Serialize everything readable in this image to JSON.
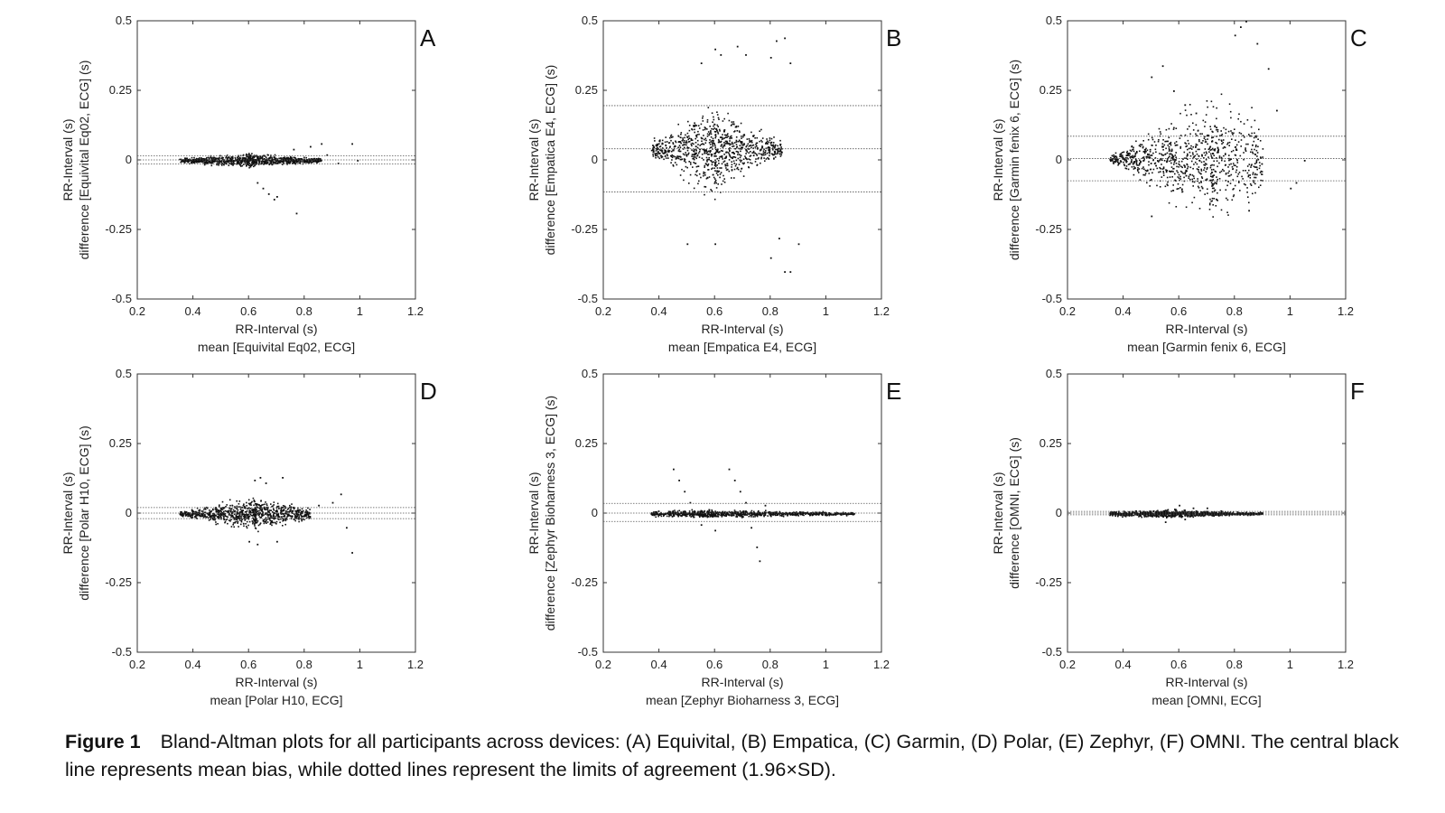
{
  "chart_data": [
    {
      "type": "scatter",
      "panel_letter": "A",
      "xlabel": [
        "RR-Interval (s)",
        "mean [Equivital Eq02, ECG]"
      ],
      "ylabel": [
        "RR-Interval (s)",
        "difference [Equivital Eq02, ECG] (s)"
      ],
      "xlim": [
        0.2,
        1.2
      ],
      "ylim": [
        -0.5,
        0.5
      ],
      "xticks": [
        "0.2",
        "0.4",
        "0.6",
        "0.8",
        "1",
        "1.2"
      ],
      "yticks": [
        "0.5",
        "0.25",
        "0",
        "-0.25",
        "-0.5"
      ],
      "bias": 0.0,
      "loa": [
        -0.015,
        0.015
      ],
      "cloud": {
        "x_range": [
          0.35,
          0.86
        ],
        "x_peak": 0.6,
        "spread": [
          0.006,
          0.022
        ]
      },
      "points": [
        [
          0.63,
          -0.08
        ],
        [
          0.65,
          -0.1
        ],
        [
          0.67,
          -0.12
        ],
        [
          0.69,
          -0.14
        ],
        [
          0.7,
          -0.13
        ],
        [
          0.77,
          -0.19
        ],
        [
          0.76,
          0.04
        ],
        [
          0.82,
          0.05
        ],
        [
          0.86,
          0.06
        ],
        [
          0.97,
          0.06
        ],
        [
          0.99,
          0.0
        ],
        [
          0.88,
          0.02
        ],
        [
          0.92,
          -0.01
        ]
      ]
    },
    {
      "type": "scatter",
      "panel_letter": "B",
      "xlabel": [
        "RR-Interval (s)",
        "mean [Empatica E4, ECG]"
      ],
      "ylabel": [
        "RR-Interval (s)",
        "difference [Empatica E4, ECG] (s)"
      ],
      "xlim": [
        0.2,
        1.2
      ],
      "ylim": [
        -0.5,
        0.5
      ],
      "xticks": [
        "0.2",
        "0.4",
        "0.6",
        "0.8",
        "1",
        "1.2"
      ],
      "yticks": [
        "0.5",
        "0.25",
        "0",
        "-0.25",
        "-0.5"
      ],
      "bias": 0.04,
      "loa": [
        -0.115,
        0.195
      ],
      "cloud": {
        "x_range": [
          0.37,
          0.84
        ],
        "x_peak": 0.6,
        "spread": [
          0.02,
          0.14
        ]
      },
      "points": [
        [
          0.55,
          0.35
        ],
        [
          0.6,
          0.4
        ],
        [
          0.62,
          0.38
        ],
        [
          0.68,
          0.41
        ],
        [
          0.71,
          0.38
        ],
        [
          0.8,
          0.37
        ],
        [
          0.82,
          0.43
        ],
        [
          0.85,
          0.44
        ],
        [
          0.87,
          0.35
        ],
        [
          0.8,
          -0.35
        ],
        [
          0.83,
          -0.28
        ],
        [
          0.85,
          -0.4
        ],
        [
          0.87,
          -0.4
        ],
        [
          0.9,
          -0.3
        ],
        [
          0.5,
          -0.3
        ],
        [
          0.6,
          -0.3
        ]
      ]
    },
    {
      "type": "scatter",
      "panel_letter": "C",
      "xlabel": [
        "RR-Interval (s)",
        "mean [Garmin fenix 6, ECG]"
      ],
      "ylabel": [
        "RR-Interval (s)",
        "difference [Garmin fenix 6, ECG] (s)"
      ],
      "xlim": [
        0.2,
        1.2
      ],
      "ylim": [
        -0.5,
        0.5
      ],
      "xticks": [
        "0.2",
        "0.4",
        "0.6",
        "0.8",
        "1",
        "1.2"
      ],
      "yticks": [
        "0.5",
        "0.25",
        "0",
        "-0.25",
        "-0.5"
      ],
      "bias": 0.005,
      "loa": [
        -0.075,
        0.085
      ],
      "cloud": {
        "x_range": [
          0.35,
          0.9
        ],
        "x_peak": 0.72,
        "spread": [
          0.01,
          0.2
        ]
      },
      "points": [
        [
          0.5,
          0.3
        ],
        [
          0.54,
          0.34
        ],
        [
          0.58,
          0.25
        ],
        [
          0.62,
          0.2
        ],
        [
          0.66,
          0.17
        ],
        [
          0.8,
          0.45
        ],
        [
          0.82,
          0.48
        ],
        [
          0.84,
          0.5
        ],
        [
          0.88,
          0.42
        ],
        [
          0.92,
          0.33
        ],
        [
          0.95,
          0.18
        ],
        [
          1.0,
          -0.1
        ],
        [
          1.02,
          -0.08
        ],
        [
          1.05,
          0.0
        ],
        [
          0.85,
          -0.18
        ],
        [
          0.5,
          -0.2
        ]
      ]
    },
    {
      "type": "scatter",
      "panel_letter": "D",
      "xlabel": [
        "RR-Interval (s)",
        "mean [Polar H10, ECG]"
      ],
      "ylabel": [
        "RR-Interval (s)",
        "difference [Polar H10, ECG] (s)"
      ],
      "xlim": [
        0.2,
        1.2
      ],
      "ylim": [
        -0.5,
        0.5
      ],
      "xticks": [
        "0.2",
        "0.4",
        "0.6",
        "0.8",
        "1",
        "1.2"
      ],
      "yticks": [
        "0.5",
        "0.25",
        "0",
        "-0.25",
        "-0.5"
      ],
      "bias": 0.0,
      "loa": [
        -0.02,
        0.02
      ],
      "cloud": {
        "x_range": [
          0.35,
          0.82
        ],
        "x_peak": 0.62,
        "spread": [
          0.006,
          0.05
        ]
      },
      "points": [
        [
          0.62,
          0.12
        ],
        [
          0.64,
          0.13
        ],
        [
          0.66,
          0.11
        ],
        [
          0.72,
          0.13
        ],
        [
          0.6,
          -0.1
        ],
        [
          0.63,
          -0.11
        ],
        [
          0.7,
          -0.1
        ],
        [
          0.93,
          0.07
        ],
        [
          0.9,
          0.04
        ],
        [
          0.95,
          -0.05
        ],
        [
          0.97,
          -0.14
        ],
        [
          0.85,
          0.03
        ]
      ]
    },
    {
      "type": "scatter",
      "panel_letter": "E",
      "xlabel": [
        "RR-Interval (s)",
        "mean [Zephyr Bioharness 3, ECG]"
      ],
      "ylabel": [
        "RR-Interval (s)",
        "difference [Zephyr Bioharness 3, ECG] (s)"
      ],
      "xlim": [
        0.2,
        1.2
      ],
      "ylim": [
        -0.5,
        0.5
      ],
      "xticks": [
        "0.2",
        "0.4",
        "0.6",
        "0.8",
        "1",
        "1.2"
      ],
      "yticks": [
        "0.5",
        "0.25",
        "0",
        "-0.25",
        "-0.5"
      ],
      "bias": 0.0,
      "loa": [
        -0.03,
        0.035
      ],
      "cloud": {
        "x_range": [
          0.37,
          1.1
        ],
        "x_peak": 0.55,
        "spread": [
          0.004,
          0.012
        ]
      },
      "points": [
        [
          0.45,
          0.16
        ],
        [
          0.47,
          0.12
        ],
        [
          0.49,
          0.08
        ],
        [
          0.51,
          0.04
        ],
        [
          0.53,
          0.0
        ],
        [
          0.55,
          -0.04
        ],
        [
          0.65,
          0.16
        ],
        [
          0.67,
          0.12
        ],
        [
          0.69,
          0.08
        ],
        [
          0.71,
          0.04
        ],
        [
          0.73,
          -0.05
        ],
        [
          0.75,
          -0.12
        ],
        [
          0.76,
          -0.17
        ],
        [
          0.6,
          -0.06
        ],
        [
          0.78,
          0.03
        ]
      ]
    },
    {
      "type": "scatter",
      "panel_letter": "F",
      "xlabel": [
        "RR-Interval (s)",
        "mean [OMNI, ECG]"
      ],
      "ylabel": [
        "RR-Interval (s)",
        "difference [OMNI, ECG] (s)"
      ],
      "xlim": [
        0.2,
        1.2
      ],
      "ylim": [
        -0.5,
        0.5
      ],
      "xticks": [
        "0.2",
        "0.4",
        "0.6",
        "0.8",
        "1",
        "1.2"
      ],
      "yticks": [
        "0.5",
        "0.25",
        "0",
        "-0.25",
        "-0.5"
      ],
      "bias": 0.0,
      "loa": [
        -0.006,
        0.006
      ],
      "cloud": {
        "x_range": [
          0.35,
          0.9
        ],
        "x_peak": 0.55,
        "spread": [
          0.004,
          0.012
        ]
      },
      "points": [
        [
          0.6,
          0.03
        ],
        [
          0.65,
          0.02
        ],
        [
          0.7,
          0.02
        ],
        [
          0.55,
          -0.03
        ],
        [
          0.62,
          -0.02
        ],
        [
          0.75,
          0.01
        ]
      ]
    }
  ],
  "caption": {
    "label": "Figure 1",
    "text": "Bland-Altman plots for all participants across devices: (A) Equivital, (B) Empatica, (C) Garmin, (D) Polar, (E) Zephyr, (F) OMNI. The central black line represents mean bias, while dotted lines represent the limits of agreement (1.96×SD)."
  }
}
